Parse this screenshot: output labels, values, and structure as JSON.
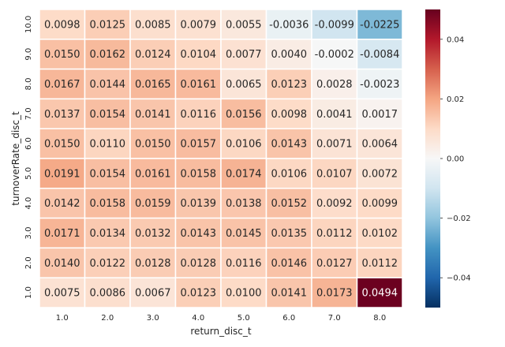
{
  "chart_data": {
    "type": "heatmap",
    "xlabel": "return_disc_t",
    "ylabel": "turnoverRate_disc_t",
    "x_categories": [
      "1.0",
      "2.0",
      "3.0",
      "4.0",
      "5.0",
      "6.0",
      "7.0",
      "8.0"
    ],
    "y_categories": [
      "10.0",
      "9.0",
      "8.0",
      "7.0",
      "6.0",
      "5.0",
      "4.0",
      "3.0",
      "2.0",
      "1.0"
    ],
    "values": [
      [
        0.0098,
        0.0125,
        0.0085,
        0.0079,
        0.0055,
        -0.0036,
        -0.0099,
        -0.0225
      ],
      [
        0.015,
        0.0162,
        0.0124,
        0.0104,
        0.0077,
        0.004,
        -0.0002,
        -0.0084
      ],
      [
        0.0167,
        0.0144,
        0.0165,
        0.0161,
        0.0065,
        0.0123,
        0.0028,
        -0.0023
      ],
      [
        0.0137,
        0.0154,
        0.0141,
        0.0116,
        0.0156,
        0.0098,
        0.0041,
        0.0017
      ],
      [
        0.015,
        0.011,
        0.015,
        0.0157,
        0.0106,
        0.0143,
        0.0071,
        0.0064
      ],
      [
        0.0191,
        0.0154,
        0.0161,
        0.0158,
        0.0174,
        0.0106,
        0.0107,
        0.0072
      ],
      [
        0.0142,
        0.0158,
        0.0159,
        0.0139,
        0.0138,
        0.0152,
        0.0092,
        0.0099
      ],
      [
        0.0171,
        0.0134,
        0.0132,
        0.0143,
        0.0145,
        0.0135,
        0.0112,
        0.0102
      ],
      [
        0.014,
        0.0122,
        0.0128,
        0.0128,
        0.0116,
        0.0146,
        0.0127,
        0.0112
      ],
      [
        0.0075,
        0.0086,
        0.0067,
        0.0123,
        0.01,
        0.0141,
        0.0173,
        0.0494
      ]
    ],
    "value_format": "4 decimals",
    "colormap": "RdBu_r",
    "vmin": -0.05,
    "vmax": 0.05,
    "colorbar_ticks": [
      0.04,
      0.02,
      0.0,
      -0.02,
      -0.04
    ],
    "colorbar_tick_labels": [
      "0.04",
      "0.02",
      "0.00",
      "−0.02",
      "−0.04"
    ],
    "grid": false,
    "cell_border_color": "#ffffff"
  }
}
